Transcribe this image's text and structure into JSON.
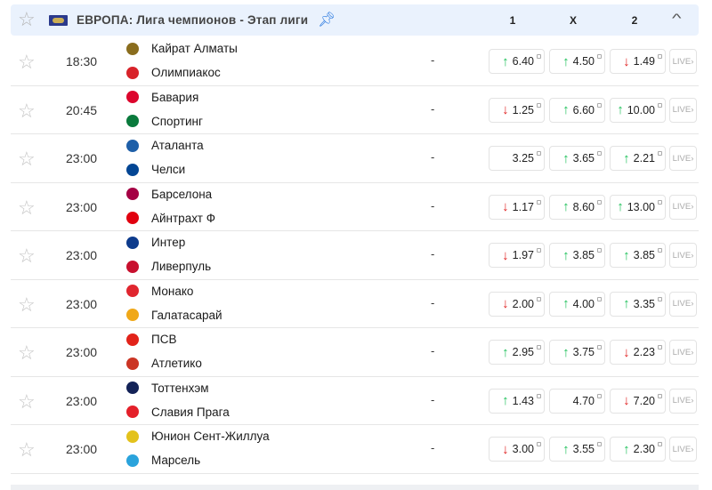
{
  "header": {
    "title": "ЕВРОПА: Лига чемпионов - Этап лиги",
    "col1": "1",
    "colx": "X",
    "col2": "2",
    "icons": [
      "star-icon",
      "europe-flag-icon",
      "pin-icon",
      "chevron-up-icon"
    ]
  },
  "colors": {
    "up": "#1fc15a",
    "down": "#e02424",
    "header_bg": "#eaf2fd",
    "pin": "#2d7be0"
  },
  "live_label": "LIVE",
  "matches": [
    {
      "time": "18:30",
      "home": "Кайрат Алматы",
      "away": "Олимпиакос",
      "score": "-",
      "odds": [
        {
          "v": "6.40",
          "t": "up"
        },
        {
          "v": "4.50",
          "t": "up"
        },
        {
          "v": "1.49",
          "t": "down"
        }
      ],
      "logos": [
        "#8a6d1e",
        "#d8232a"
      ]
    },
    {
      "time": "20:45",
      "home": "Бавария",
      "away": "Спортинг",
      "score": "-",
      "odds": [
        {
          "v": "1.25",
          "t": "down"
        },
        {
          "v": "6.60",
          "t": "up"
        },
        {
          "v": "10.00",
          "t": "up"
        }
      ],
      "logos": [
        "#dc052d",
        "#0a7a3c"
      ]
    },
    {
      "time": "23:00",
      "home": "Аталанта",
      "away": "Челси",
      "score": "-",
      "odds": [
        {
          "v": "3.25",
          "t": ""
        },
        {
          "v": "3.65",
          "t": "up"
        },
        {
          "v": "2.21",
          "t": "up"
        }
      ],
      "logos": [
        "#1e5fa8",
        "#034694"
      ]
    },
    {
      "time": "23:00",
      "home": "Барселона",
      "away": "Айнтрахт Ф",
      "score": "-",
      "odds": [
        {
          "v": "1.17",
          "t": "down"
        },
        {
          "v": "8.60",
          "t": "up"
        },
        {
          "v": "13.00",
          "t": "up"
        }
      ],
      "logos": [
        "#a50044",
        "#e1000f"
      ]
    },
    {
      "time": "23:00",
      "home": "Интер",
      "away": "Ливерпуль",
      "score": "-",
      "odds": [
        {
          "v": "1.97",
          "t": "down"
        },
        {
          "v": "3.85",
          "t": "up"
        },
        {
          "v": "3.85",
          "t": "up"
        }
      ],
      "logos": [
        "#0d3b8c",
        "#c8102e"
      ]
    },
    {
      "time": "23:00",
      "home": "Монако",
      "away": "Галатасарай",
      "score": "-",
      "odds": [
        {
          "v": "2.00",
          "t": "down"
        },
        {
          "v": "4.00",
          "t": "up"
        },
        {
          "v": "3.35",
          "t": "up"
        }
      ],
      "logos": [
        "#e0262f",
        "#f0a818"
      ]
    },
    {
      "time": "23:00",
      "home": "ПСВ",
      "away": "Атлетико",
      "score": "-",
      "odds": [
        {
          "v": "2.95",
          "t": "up"
        },
        {
          "v": "3.75",
          "t": "up"
        },
        {
          "v": "2.23",
          "t": "down"
        }
      ],
      "logos": [
        "#e2231a",
        "#cb3524"
      ]
    },
    {
      "time": "23:00",
      "home": "Тоттенхэм",
      "away": "Славия Прага",
      "score": "-",
      "odds": [
        {
          "v": "1.43",
          "t": "up"
        },
        {
          "v": "4.70",
          "t": ""
        },
        {
          "v": "7.20",
          "t": "down"
        }
      ],
      "logos": [
        "#132257",
        "#e4202a"
      ]
    },
    {
      "time": "23:00",
      "home": "Юнион Сент-Жиллуа",
      "away": "Марсель",
      "score": "-",
      "odds": [
        {
          "v": "3.00",
          "t": "down"
        },
        {
          "v": "3.55",
          "t": "up"
        },
        {
          "v": "2.30",
          "t": "up"
        }
      ],
      "logos": [
        "#e3c21c",
        "#2aa3dc"
      ]
    }
  ]
}
